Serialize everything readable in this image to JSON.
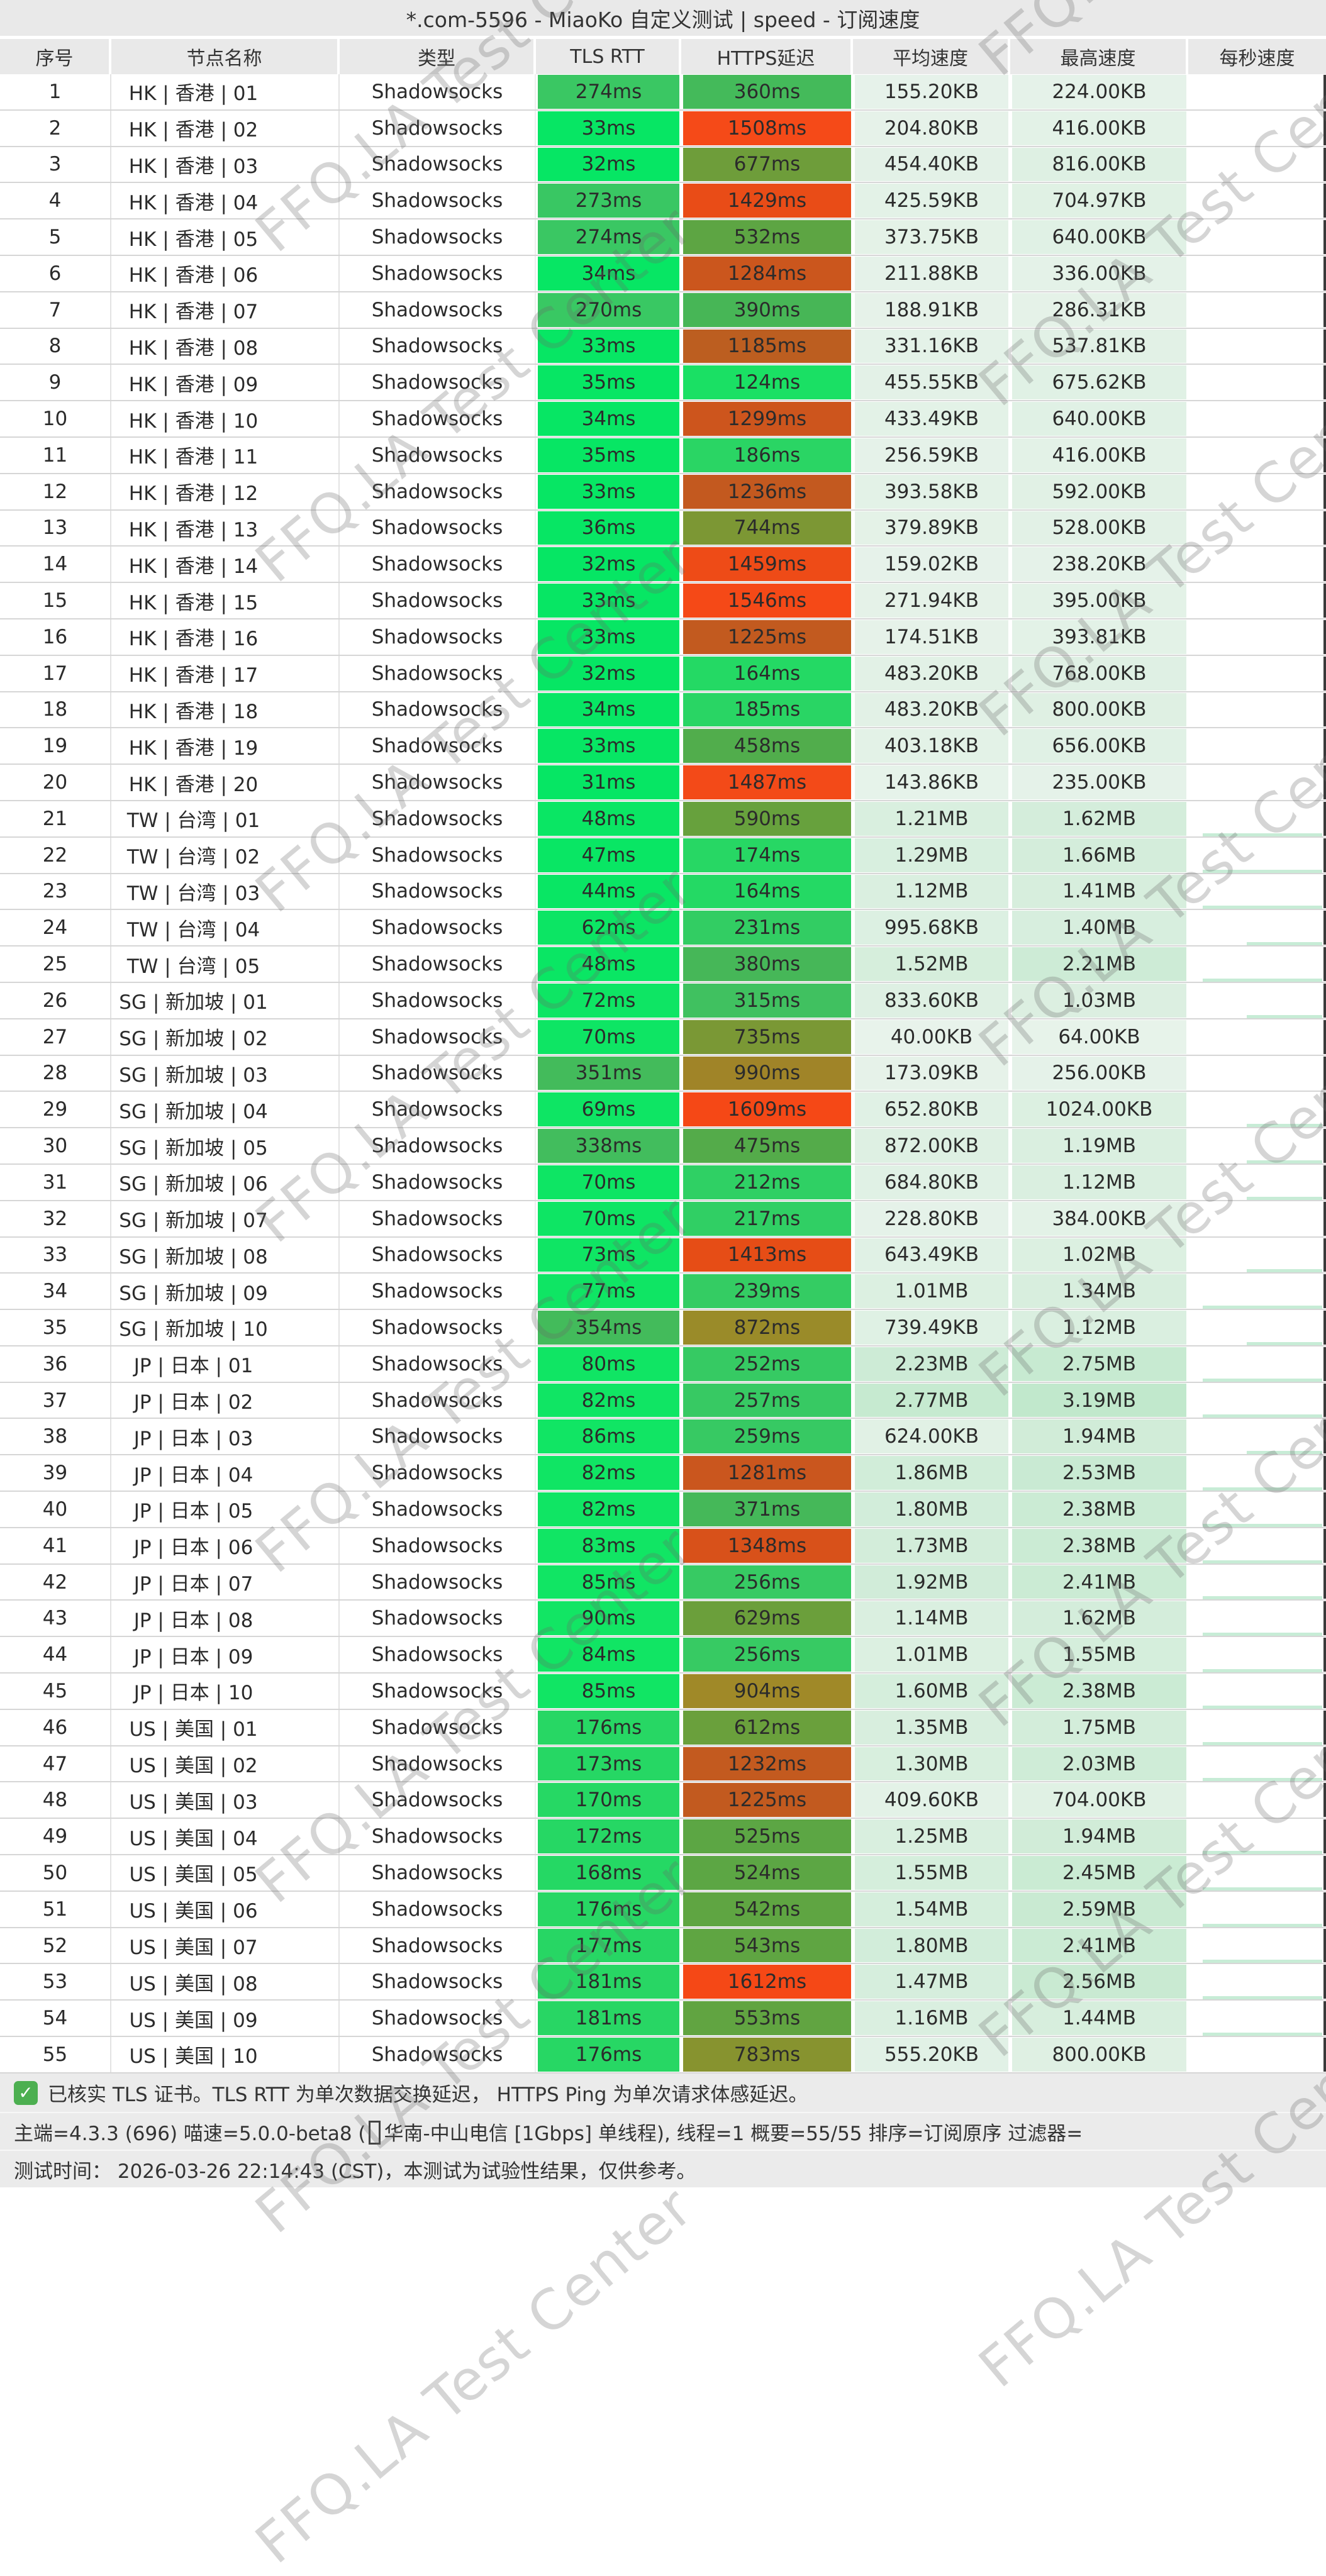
{
  "title": "*.com-5596 - MiaoKo 自定义测试 | speed - 订阅速度",
  "columns": [
    "序号",
    "节点名称",
    "类型",
    "TLS RTT",
    "HTTPS延迟",
    "平均速度",
    "最高速度",
    "每秒速度"
  ],
  "watermark_text": "FFQ.LA Test Center",
  "colors": {
    "title_bar_bg": "#e9e9e9",
    "footer_bg": "#ebebeb",
    "checkbox_green": "#4caf50",
    "latency_best_green": "#17e667",
    "latency_worst_red": "#f54a18",
    "speed_cell_tint": "#d9efe0",
    "row_divider": "#d6d6d6",
    "edge_bar": "#3a3a3a"
  },
  "rows": [
    {
      "num": 1,
      "name": "HK | 香港 | 01",
      "type": "Shadowsocks",
      "tls_rtt": "274ms",
      "https_delay": "360ms",
      "avg_speed": "155.20KB",
      "max_speed": "224.00KB"
    },
    {
      "num": 2,
      "name": "HK | 香港 | 02",
      "type": "Shadowsocks",
      "tls_rtt": "33ms",
      "https_delay": "1508ms",
      "avg_speed": "204.80KB",
      "max_speed": "416.00KB"
    },
    {
      "num": 3,
      "name": "HK | 香港 | 03",
      "type": "Shadowsocks",
      "tls_rtt": "32ms",
      "https_delay": "677ms",
      "avg_speed": "454.40KB",
      "max_speed": "816.00KB"
    },
    {
      "num": 4,
      "name": "HK | 香港 | 04",
      "type": "Shadowsocks",
      "tls_rtt": "273ms",
      "https_delay": "1429ms",
      "avg_speed": "425.59KB",
      "max_speed": "704.97KB"
    },
    {
      "num": 5,
      "name": "HK | 香港 | 05",
      "type": "Shadowsocks",
      "tls_rtt": "274ms",
      "https_delay": "532ms",
      "avg_speed": "373.75KB",
      "max_speed": "640.00KB"
    },
    {
      "num": 6,
      "name": "HK | 香港 | 06",
      "type": "Shadowsocks",
      "tls_rtt": "34ms",
      "https_delay": "1284ms",
      "avg_speed": "211.88KB",
      "max_speed": "336.00KB"
    },
    {
      "num": 7,
      "name": "HK | 香港 | 07",
      "type": "Shadowsocks",
      "tls_rtt": "270ms",
      "https_delay": "390ms",
      "avg_speed": "188.91KB",
      "max_speed": "286.31KB"
    },
    {
      "num": 8,
      "name": "HK | 香港 | 08",
      "type": "Shadowsocks",
      "tls_rtt": "33ms",
      "https_delay": "1185ms",
      "avg_speed": "331.16KB",
      "max_speed": "537.81KB"
    },
    {
      "num": 9,
      "name": "HK | 香港 | 09",
      "type": "Shadowsocks",
      "tls_rtt": "35ms",
      "https_delay": "124ms",
      "avg_speed": "455.55KB",
      "max_speed": "675.62KB"
    },
    {
      "num": 10,
      "name": "HK | 香港 | 10",
      "type": "Shadowsocks",
      "tls_rtt": "34ms",
      "https_delay": "1299ms",
      "avg_speed": "433.49KB",
      "max_speed": "640.00KB"
    },
    {
      "num": 11,
      "name": "HK | 香港 | 11",
      "type": "Shadowsocks",
      "tls_rtt": "35ms",
      "https_delay": "186ms",
      "avg_speed": "256.59KB",
      "max_speed": "416.00KB"
    },
    {
      "num": 12,
      "name": "HK | 香港 | 12",
      "type": "Shadowsocks",
      "tls_rtt": "33ms",
      "https_delay": "1236ms",
      "avg_speed": "393.58KB",
      "max_speed": "592.00KB"
    },
    {
      "num": 13,
      "name": "HK | 香港 | 13",
      "type": "Shadowsocks",
      "tls_rtt": "36ms",
      "https_delay": "744ms",
      "avg_speed": "379.89KB",
      "max_speed": "528.00KB"
    },
    {
      "num": 14,
      "name": "HK | 香港 | 14",
      "type": "Shadowsocks",
      "tls_rtt": "32ms",
      "https_delay": "1459ms",
      "avg_speed": "159.02KB",
      "max_speed": "238.20KB"
    },
    {
      "num": 15,
      "name": "HK | 香港 | 15",
      "type": "Shadowsocks",
      "tls_rtt": "33ms",
      "https_delay": "1546ms",
      "avg_speed": "271.94KB",
      "max_speed": "395.00KB"
    },
    {
      "num": 16,
      "name": "HK | 香港 | 16",
      "type": "Shadowsocks",
      "tls_rtt": "33ms",
      "https_delay": "1225ms",
      "avg_speed": "174.51KB",
      "max_speed": "393.81KB"
    },
    {
      "num": 17,
      "name": "HK | 香港 | 17",
      "type": "Shadowsocks",
      "tls_rtt": "32ms",
      "https_delay": "164ms",
      "avg_speed": "483.20KB",
      "max_speed": "768.00KB"
    },
    {
      "num": 18,
      "name": "HK | 香港 | 18",
      "type": "Shadowsocks",
      "tls_rtt": "34ms",
      "https_delay": "185ms",
      "avg_speed": "483.20KB",
      "max_speed": "800.00KB"
    },
    {
      "num": 19,
      "name": "HK | 香港 | 19",
      "type": "Shadowsocks",
      "tls_rtt": "33ms",
      "https_delay": "458ms",
      "avg_speed": "403.18KB",
      "max_speed": "656.00KB"
    },
    {
      "num": 20,
      "name": "HK | 香港 | 20",
      "type": "Shadowsocks",
      "tls_rtt": "31ms",
      "https_delay": "1487ms",
      "avg_speed": "143.86KB",
      "max_speed": "235.00KB"
    },
    {
      "num": 21,
      "name": "TW | 台湾 | 01",
      "type": "Shadowsocks",
      "tls_rtt": "48ms",
      "https_delay": "590ms",
      "avg_speed": "1.21MB",
      "max_speed": "1.62MB"
    },
    {
      "num": 22,
      "name": "TW | 台湾 | 02",
      "type": "Shadowsocks",
      "tls_rtt": "47ms",
      "https_delay": "174ms",
      "avg_speed": "1.29MB",
      "max_speed": "1.66MB"
    },
    {
      "num": 23,
      "name": "TW | 台湾 | 03",
      "type": "Shadowsocks",
      "tls_rtt": "44ms",
      "https_delay": "164ms",
      "avg_speed": "1.12MB",
      "max_speed": "1.41MB"
    },
    {
      "num": 24,
      "name": "TW | 台湾 | 04",
      "type": "Shadowsocks",
      "tls_rtt": "62ms",
      "https_delay": "231ms",
      "avg_speed": "995.68KB",
      "max_speed": "1.40MB"
    },
    {
      "num": 25,
      "name": "TW | 台湾 | 05",
      "type": "Shadowsocks",
      "tls_rtt": "48ms",
      "https_delay": "380ms",
      "avg_speed": "1.52MB",
      "max_speed": "2.21MB"
    },
    {
      "num": 26,
      "name": "SG | 新加坡 | 01",
      "type": "Shadowsocks",
      "tls_rtt": "72ms",
      "https_delay": "315ms",
      "avg_speed": "833.60KB",
      "max_speed": "1.03MB"
    },
    {
      "num": 27,
      "name": "SG | 新加坡 | 02",
      "type": "Shadowsocks",
      "tls_rtt": "70ms",
      "https_delay": "735ms",
      "avg_speed": "40.00KB",
      "max_speed": "64.00KB"
    },
    {
      "num": 28,
      "name": "SG | 新加坡 | 03",
      "type": "Shadowsocks",
      "tls_rtt": "351ms",
      "https_delay": "990ms",
      "avg_speed": "173.09KB",
      "max_speed": "256.00KB"
    },
    {
      "num": 29,
      "name": "SG | 新加坡 | 04",
      "type": "Shadowsocks",
      "tls_rtt": "69ms",
      "https_delay": "1609ms",
      "avg_speed": "652.80KB",
      "max_speed": "1024.00KB"
    },
    {
      "num": 30,
      "name": "SG | 新加坡 | 05",
      "type": "Shadowsocks",
      "tls_rtt": "338ms",
      "https_delay": "475ms",
      "avg_speed": "872.00KB",
      "max_speed": "1.19MB"
    },
    {
      "num": 31,
      "name": "SG | 新加坡 | 06",
      "type": "Shadowsocks",
      "tls_rtt": "70ms",
      "https_delay": "212ms",
      "avg_speed": "684.80KB",
      "max_speed": "1.12MB"
    },
    {
      "num": 32,
      "name": "SG | 新加坡 | 07",
      "type": "Shadowsocks",
      "tls_rtt": "70ms",
      "https_delay": "217ms",
      "avg_speed": "228.80KB",
      "max_speed": "384.00KB"
    },
    {
      "num": 33,
      "name": "SG | 新加坡 | 08",
      "type": "Shadowsocks",
      "tls_rtt": "73ms",
      "https_delay": "1413ms",
      "avg_speed": "643.49KB",
      "max_speed": "1.02MB"
    },
    {
      "num": 34,
      "name": "SG | 新加坡 | 09",
      "type": "Shadowsocks",
      "tls_rtt": "77ms",
      "https_delay": "239ms",
      "avg_speed": "1.01MB",
      "max_speed": "1.34MB"
    },
    {
      "num": 35,
      "name": "SG | 新加坡 | 10",
      "type": "Shadowsocks",
      "tls_rtt": "354ms",
      "https_delay": "872ms",
      "avg_speed": "739.49KB",
      "max_speed": "1.12MB"
    },
    {
      "num": 36,
      "name": "JP | 日本 | 01",
      "type": "Shadowsocks",
      "tls_rtt": "80ms",
      "https_delay": "252ms",
      "avg_speed": "2.23MB",
      "max_speed": "2.75MB"
    },
    {
      "num": 37,
      "name": "JP | 日本 | 02",
      "type": "Shadowsocks",
      "tls_rtt": "82ms",
      "https_delay": "257ms",
      "avg_speed": "2.77MB",
      "max_speed": "3.19MB"
    },
    {
      "num": 38,
      "name": "JP | 日本 | 03",
      "type": "Shadowsocks",
      "tls_rtt": "86ms",
      "https_delay": "259ms",
      "avg_speed": "624.00KB",
      "max_speed": "1.94MB"
    },
    {
      "num": 39,
      "name": "JP | 日本 | 04",
      "type": "Shadowsocks",
      "tls_rtt": "82ms",
      "https_delay": "1281ms",
      "avg_speed": "1.86MB",
      "max_speed": "2.53MB"
    },
    {
      "num": 40,
      "name": "JP | 日本 | 05",
      "type": "Shadowsocks",
      "tls_rtt": "82ms",
      "https_delay": "371ms",
      "avg_speed": "1.80MB",
      "max_speed": "2.38MB"
    },
    {
      "num": 41,
      "name": "JP | 日本 | 06",
      "type": "Shadowsocks",
      "tls_rtt": "83ms",
      "https_delay": "1348ms",
      "avg_speed": "1.73MB",
      "max_speed": "2.38MB"
    },
    {
      "num": 42,
      "name": "JP | 日本 | 07",
      "type": "Shadowsocks",
      "tls_rtt": "85ms",
      "https_delay": "256ms",
      "avg_speed": "1.92MB",
      "max_speed": "2.41MB"
    },
    {
      "num": 43,
      "name": "JP | 日本 | 08",
      "type": "Shadowsocks",
      "tls_rtt": "90ms",
      "https_delay": "629ms",
      "avg_speed": "1.14MB",
      "max_speed": "1.62MB"
    },
    {
      "num": 44,
      "name": "JP | 日本 | 09",
      "type": "Shadowsocks",
      "tls_rtt": "84ms",
      "https_delay": "256ms",
      "avg_speed": "1.01MB",
      "max_speed": "1.55MB"
    },
    {
      "num": 45,
      "name": "JP | 日本 | 10",
      "type": "Shadowsocks",
      "tls_rtt": "85ms",
      "https_delay": "904ms",
      "avg_speed": "1.60MB",
      "max_speed": "2.38MB"
    },
    {
      "num": 46,
      "name": "US | 美国 | 01",
      "type": "Shadowsocks",
      "tls_rtt": "176ms",
      "https_delay": "612ms",
      "avg_speed": "1.35MB",
      "max_speed": "1.75MB"
    },
    {
      "num": 47,
      "name": "US | 美国 | 02",
      "type": "Shadowsocks",
      "tls_rtt": "173ms",
      "https_delay": "1232ms",
      "avg_speed": "1.30MB",
      "max_speed": "2.03MB"
    },
    {
      "num": 48,
      "name": "US | 美国 | 03",
      "type": "Shadowsocks",
      "tls_rtt": "170ms",
      "https_delay": "1225ms",
      "avg_speed": "409.60KB",
      "max_speed": "704.00KB"
    },
    {
      "num": 49,
      "name": "US | 美国 | 04",
      "type": "Shadowsocks",
      "tls_rtt": "172ms",
      "https_delay": "525ms",
      "avg_speed": "1.25MB",
      "max_speed": "1.94MB"
    },
    {
      "num": 50,
      "name": "US | 美国 | 05",
      "type": "Shadowsocks",
      "tls_rtt": "168ms",
      "https_delay": "524ms",
      "avg_speed": "1.55MB",
      "max_speed": "2.45MB"
    },
    {
      "num": 51,
      "name": "US | 美国 | 06",
      "type": "Shadowsocks",
      "tls_rtt": "176ms",
      "https_delay": "542ms",
      "avg_speed": "1.54MB",
      "max_speed": "2.59MB"
    },
    {
      "num": 52,
      "name": "US | 美国 | 07",
      "type": "Shadowsocks",
      "tls_rtt": "177ms",
      "https_delay": "543ms",
      "avg_speed": "1.80MB",
      "max_speed": "2.41MB"
    },
    {
      "num": 53,
      "name": "US | 美国 | 08",
      "type": "Shadowsocks",
      "tls_rtt": "181ms",
      "https_delay": "1612ms",
      "avg_speed": "1.47MB",
      "max_speed": "2.56MB"
    },
    {
      "num": 54,
      "name": "US | 美国 | 09",
      "type": "Shadowsocks",
      "tls_rtt": "181ms",
      "https_delay": "553ms",
      "avg_speed": "1.16MB",
      "max_speed": "1.44MB"
    },
    {
      "num": 55,
      "name": "US | 美国 | 10",
      "type": "Shadowsocks",
      "tls_rtt": "176ms",
      "https_delay": "783ms",
      "avg_speed": "555.20KB",
      "max_speed": "800.00KB"
    }
  ],
  "footer": {
    "line1": "已核实 TLS 证书。TLS RTT 为单次数据交换延迟， HTTPS Ping 为单次请求体感延迟。",
    "line2_prefix": "主端=4.3.3 (696) 喵速=5.0.0-beta8 (",
    "line2_suffix": "华南-中山电信 [1Gbps] 单线程), 线程=1 概要=55/55 排序=订阅原序 过滤器=",
    "line3": "测试时间： 2026-03-26 22:14:43 (CST)，本测试为试验性结果，仅供参考。"
  }
}
